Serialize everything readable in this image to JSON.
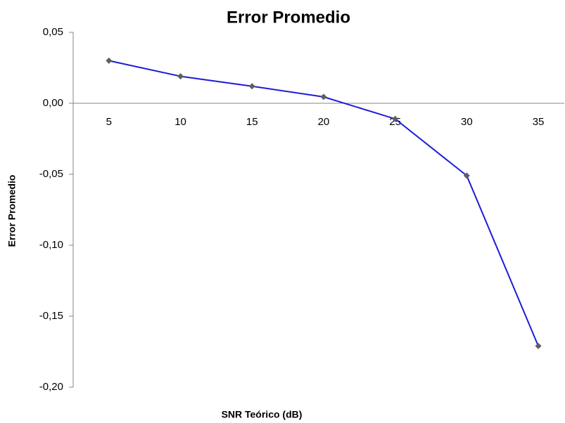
{
  "chart_data": {
    "type": "line",
    "title": "Error Promedio",
    "x_label": "SNR Teórico (dB)",
    "y_label": "Error Promedio",
    "categories": [
      "5",
      "10",
      "15",
      "20",
      "25",
      "30",
      "35"
    ],
    "series": [
      {
        "name": "Error Promedio",
        "color": "#1c1cd8",
        "marker_color": "#5f5f5f",
        "values": [
          0.03,
          0.019,
          0.012,
          0.0045,
          -0.011,
          -0.051,
          -0.171
        ]
      }
    ],
    "ylim": [
      -0.2,
      0.05
    ],
    "yticks": [
      {
        "value": -0.2,
        "label": "-0,20"
      },
      {
        "value": -0.15,
        "label": "-0,15"
      },
      {
        "value": -0.1,
        "label": "-0,10"
      },
      {
        "value": -0.05,
        "label": "-0,05"
      },
      {
        "value": 0,
        "label": "0,00"
      },
      {
        "value": 0.05,
        "label": "0,05"
      }
    ],
    "grid": false
  }
}
